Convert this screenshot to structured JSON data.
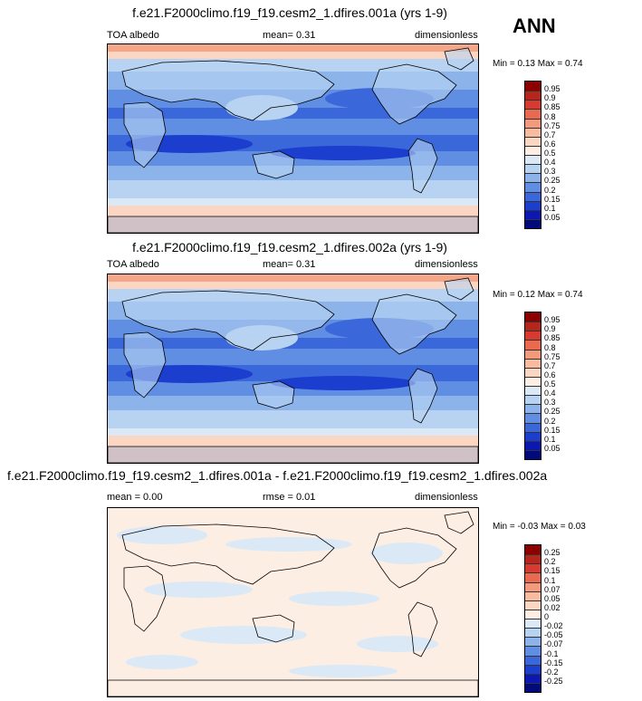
{
  "season": "ANN",
  "panels": [
    {
      "title": "f.e21.F2000climo.f19_f19.cesm2_1.dfires.001a (yrs 1-9)",
      "left_label": "TOA albedo",
      "center_label": "mean=  0.31",
      "right_label": "dimensionless",
      "minmax": "Min =  0.13 Max =  0.74",
      "cbar_labels": [
        "0.95",
        "0.9",
        "0.85",
        "0.8",
        "0.75",
        "0.7",
        "0.6",
        "0.5",
        "0.4",
        "0.3",
        "0.25",
        "0.2",
        "0.15",
        "0.1",
        "0.05"
      ],
      "cbar_colors": [
        "#8b0000",
        "#b5271c",
        "#d73b2f",
        "#ea6a4f",
        "#f49a7c",
        "#f8bba0",
        "#fbd6c2",
        "#fdeee3",
        "#dbe9f7",
        "#b8d3f1",
        "#8db4ea",
        "#5f8ee3",
        "#3a67da",
        "#1b3ecf",
        "#0a17b0",
        "#000a7a"
      ],
      "map_kind": "albedo"
    },
    {
      "title": "f.e21.F2000climo.f19_f19.cesm2_1.dfires.002a (yrs 1-9)",
      "left_label": "TOA albedo",
      "center_label": "mean=  0.31",
      "right_label": "dimensionless",
      "minmax": "Min =  0.12 Max =  0.74",
      "cbar_labels": [
        "0.95",
        "0.9",
        "0.85",
        "0.8",
        "0.75",
        "0.7",
        "0.6",
        "0.5",
        "0.4",
        "0.3",
        "0.25",
        "0.2",
        "0.15",
        "0.1",
        "0.05"
      ],
      "cbar_colors": [
        "#8b0000",
        "#b5271c",
        "#d73b2f",
        "#ea6a4f",
        "#f49a7c",
        "#f8bba0",
        "#fbd6c2",
        "#fdeee3",
        "#dbe9f7",
        "#b8d3f1",
        "#8db4ea",
        "#5f8ee3",
        "#3a67da",
        "#1b3ecf",
        "#0a17b0",
        "#000a7a"
      ],
      "map_kind": "albedo"
    },
    {
      "title": "f.e21.F2000climo.f19_f19.cesm2_1.dfires.001a - f.e21.F2000climo.f19_f19.cesm2_1.dfires.002a",
      "left_label": "mean =  0.00",
      "center_label": "rmse =  0.01",
      "right_label": "dimensionless",
      "minmax": "Min =  -0.03 Max =  0.03",
      "cbar_labels": [
        "0.25",
        "0.2",
        "0.15",
        "0.1",
        "0.07",
        "0.05",
        "0.02",
        "0",
        "-0.02",
        "-0.05",
        "-0.07",
        "-0.1",
        "-0.15",
        "-0.2",
        "-0.25"
      ],
      "cbar_colors": [
        "#8b0000",
        "#b5271c",
        "#d73b2f",
        "#ea6a4f",
        "#f49a7c",
        "#f8bba0",
        "#fbd6c2",
        "#fdeee3",
        "#dbe9f7",
        "#b8d3f1",
        "#8db4ea",
        "#5f8ee3",
        "#3a67da",
        "#1b3ecf",
        "#0a17b0",
        "#000a7a"
      ],
      "map_kind": "diff"
    }
  ]
}
